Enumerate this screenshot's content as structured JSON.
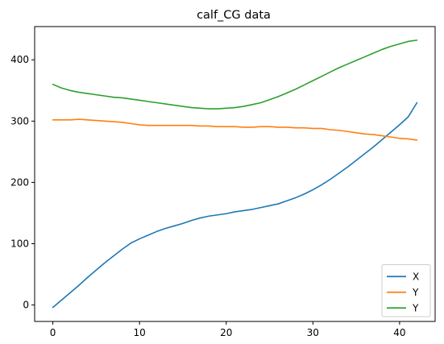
{
  "chart_data": {
    "type": "line",
    "title": "calf_CG data",
    "xlabel": "",
    "ylabel": "",
    "xlim": [
      -2.1,
      44.1
    ],
    "ylim": [
      -26.8,
      454.2
    ],
    "xticks": [
      0,
      10,
      20,
      30,
      40
    ],
    "yticks": [
      0,
      100,
      200,
      300,
      400
    ],
    "grid": false,
    "legend_position": "lower-right",
    "series": [
      {
        "name": "X",
        "color": "#1f77b4",
        "x": [
          0,
          1,
          2,
          3,
          4,
          5,
          6,
          7,
          8,
          9,
          10,
          11,
          12,
          13,
          14,
          15,
          16,
          17,
          18,
          19,
          20,
          21,
          22,
          23,
          24,
          25,
          26,
          27,
          28,
          29,
          30,
          31,
          32,
          33,
          34,
          35,
          36,
          37,
          38,
          39,
          40,
          41,
          42
        ],
        "y": [
          -4,
          8,
          20,
          32,
          45,
          57,
          69,
          80,
          91,
          101,
          108,
          114,
          120,
          125,
          129,
          133,
          138,
          142,
          145,
          147,
          149,
          152,
          154,
          156,
          159,
          162,
          165,
          170,
          175,
          181,
          188,
          196,
          205,
          215,
          225,
          236,
          247,
          258,
          270,
          282,
          294,
          307,
          330
        ]
      },
      {
        "name": "Y",
        "color": "#ff7f0e",
        "x": [
          0,
          1,
          2,
          3,
          4,
          5,
          6,
          7,
          8,
          9,
          10,
          11,
          12,
          13,
          14,
          15,
          16,
          17,
          18,
          19,
          20,
          21,
          22,
          23,
          24,
          25,
          26,
          27,
          28,
          29,
          30,
          31,
          32,
          33,
          34,
          35,
          36,
          37,
          38,
          39,
          40,
          41,
          42
        ],
        "y": [
          302,
          302,
          302,
          303,
          302,
          301,
          300,
          299,
          298,
          296,
          294,
          293,
          293,
          293,
          293,
          293,
          293,
          292,
          292,
          291,
          291,
          291,
          290,
          290,
          291,
          291,
          290,
          290,
          289,
          289,
          288,
          288,
          286,
          285,
          283,
          281,
          279,
          278,
          276,
          274,
          272,
          271,
          269
        ]
      },
      {
        "name": "Y",
        "color": "#2ca02c",
        "x": [
          0,
          1,
          2,
          3,
          4,
          5,
          6,
          7,
          8,
          9,
          10,
          11,
          12,
          13,
          14,
          15,
          16,
          17,
          18,
          19,
          20,
          21,
          22,
          23,
          24,
          25,
          26,
          27,
          28,
          29,
          30,
          31,
          32,
          33,
          34,
          35,
          36,
          37,
          38,
          39,
          40,
          41,
          42
        ],
        "y": [
          360,
          354,
          350,
          347,
          345,
          343,
          341,
          339,
          338,
          336,
          334,
          332,
          330,
          328,
          326,
          324,
          322,
          321,
          320,
          320,
          321,
          322,
          324,
          327,
          330,
          335,
          340,
          346,
          352,
          359,
          366,
          373,
          380,
          387,
          393,
          399,
          405,
          411,
          417,
          422,
          426,
          430,
          432
        ]
      }
    ]
  }
}
